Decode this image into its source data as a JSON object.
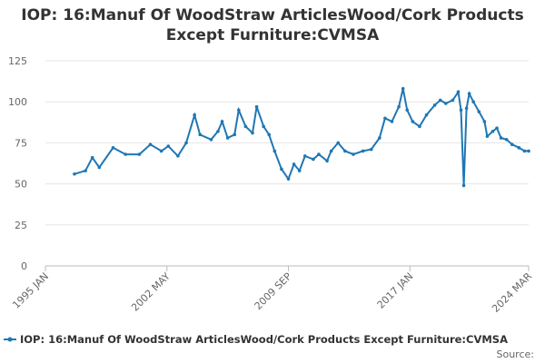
{
  "chart_data": {
    "type": "line",
    "title": "IOP: 16:Manuf Of WoodStraw ArticlesWood/Cork Products Except Furniture:CVMSA",
    "source_label": "Source:",
    "x": [
      "1996-10",
      "1997-06",
      "1997-11",
      "1998-04",
      "1999-02",
      "1999-11",
      "2000-09",
      "2001-05",
      "2002-01",
      "2002-06",
      "2003-01",
      "2003-07",
      "2004-01",
      "2004-05",
      "2005-01",
      "2005-06",
      "2005-09",
      "2006-01",
      "2006-06",
      "2006-09",
      "2007-02",
      "2007-07",
      "2007-10",
      "2008-03",
      "2008-07",
      "2008-11",
      "2009-04",
      "2009-09",
      "2010-01",
      "2010-05",
      "2010-09",
      "2011-03",
      "2011-07",
      "2012-01",
      "2012-04",
      "2012-09",
      "2013-02",
      "2013-08",
      "2014-03",
      "2014-09",
      "2015-03",
      "2015-07",
      "2015-12",
      "2016-05",
      "2016-08",
      "2016-11",
      "2017-03",
      "2017-08",
      "2018-01",
      "2018-07",
      "2018-11",
      "2019-03",
      "2019-08",
      "2019-12",
      "2020-02",
      "2020-04",
      "2020-06",
      "2020-08",
      "2020-11",
      "2021-03",
      "2021-07",
      "2021-09",
      "2022-01",
      "2022-04",
      "2022-07",
      "2022-11",
      "2023-03",
      "2023-08",
      "2023-12",
      "2024-03"
    ],
    "series": [
      {
        "name": "IOP: 16:Manuf Of WoodStraw ArticlesWood/Cork Products Except Furniture:CVMSA",
        "color": "#1f77b4",
        "values": [
          56,
          58,
          66,
          60,
          72,
          68,
          68,
          74,
          70,
          73,
          67,
          75,
          92,
          80,
          77,
          82,
          88,
          78,
          80,
          95,
          85,
          81,
          97,
          85,
          80,
          70,
          59,
          53,
          62,
          58,
          67,
          65,
          68,
          64,
          70,
          75,
          70,
          68,
          70,
          71,
          78,
          90,
          88,
          97,
          108,
          95,
          88,
          85,
          92,
          98,
          101,
          99,
          101,
          106,
          95,
          49,
          96,
          105,
          100,
          94,
          88,
          79,
          82,
          84,
          78,
          77,
          74,
          72,
          70,
          70
        ]
      }
    ],
    "xlim": [
      "1995-01",
      "2024-03"
    ],
    "xticks": [
      {
        "value": "1995-01",
        "label": "1995 JAN"
      },
      {
        "value": "2002-05",
        "label": "2002 MAY"
      },
      {
        "value": "2009-09",
        "label": "2009 SEP"
      },
      {
        "value": "2017-01",
        "label": "2017 JAN"
      },
      {
        "value": "2024-03",
        "label": "2024 MAR"
      }
    ],
    "ylim": [
      0,
      125
    ],
    "yticks": [
      0,
      25,
      50,
      75,
      100,
      125
    ],
    "grid": true
  }
}
